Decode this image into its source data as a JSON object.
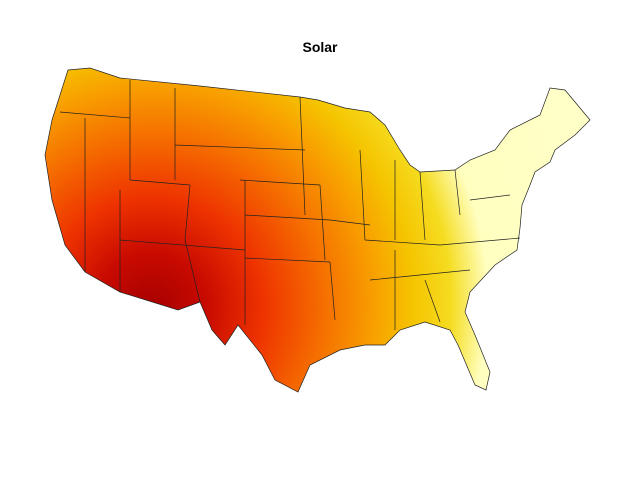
{
  "title": "Solar"
}
